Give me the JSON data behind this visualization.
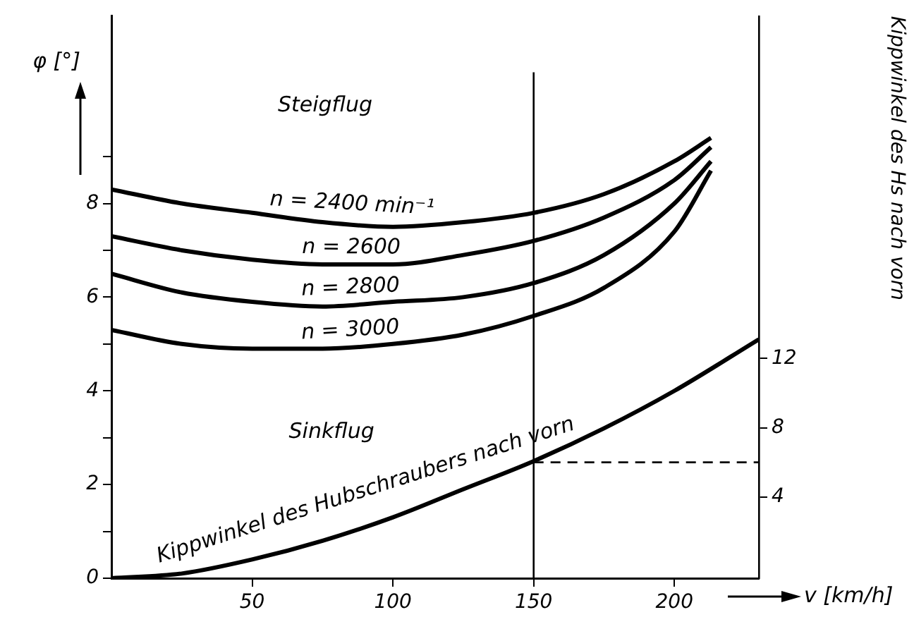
{
  "chart_data": {
    "type": "line",
    "xlabel": "v [km/h]",
    "ylabel": "φ [°]",
    "y2label": "Kippwinkel des Hs nach vorn",
    "xlim": [
      0,
      230
    ],
    "xticks": [
      50,
      100,
      150,
      200
    ],
    "ylim": [
      0,
      12
    ],
    "yticks": [
      0,
      {
        "value": 1,
        "label": null
      },
      2,
      {
        "value": 3,
        "label": null
      },
      4,
      {
        "value": 5,
        "label": null
      },
      6,
      {
        "value": 7,
        "label": null
      },
      8,
      {
        "value": 9,
        "label": null
      }
    ],
    "y2lim": [
      -0.7,
      31.8
    ],
    "y2ticks": [
      4,
      8,
      12
    ],
    "grid": false,
    "legend": false,
    "marker": "none",
    "line_style": "solid",
    "series": [
      {
        "name": "n = 2400 min⁻¹",
        "color": "#000000",
        "x": [
          0,
          25,
          50,
          75,
          100,
          125,
          150,
          175,
          200,
          213
        ],
        "values": [
          8.3,
          8.0,
          7.8,
          7.6,
          7.5,
          7.6,
          7.8,
          8.2,
          8.9,
          9.4
        ]
      },
      {
        "name": "n = 2600",
        "color": "#000000",
        "x": [
          0,
          25,
          50,
          75,
          100,
          125,
          150,
          175,
          200,
          213
        ],
        "values": [
          7.3,
          7.0,
          6.8,
          6.7,
          6.7,
          6.9,
          7.2,
          7.7,
          8.5,
          9.2
        ]
      },
      {
        "name": "n = 2800",
        "color": "#000000",
        "x": [
          0,
          25,
          50,
          75,
          100,
          125,
          150,
          175,
          200,
          213
        ],
        "values": [
          6.5,
          6.1,
          5.9,
          5.8,
          5.9,
          6.0,
          6.3,
          6.9,
          8.0,
          8.9
        ]
      },
      {
        "name": "n = 3000",
        "color": "#000000",
        "x": [
          0,
          25,
          50,
          75,
          100,
          125,
          150,
          175,
          200,
          213
        ],
        "values": [
          5.3,
          5.0,
          4.9,
          4.9,
          5.0,
          5.2,
          5.6,
          6.2,
          7.4,
          8.7
        ]
      },
      {
        "name": "Kippwinkel des Hubschraubers nach vorn",
        "color": "#000000",
        "x": [
          0,
          25,
          50,
          75,
          100,
          125,
          150,
          175,
          200,
          230
        ],
        "values": [
          0,
          0.1,
          0.4,
          0.8,
          1.3,
          1.9,
          2.5,
          3.2,
          4.0,
          5.1
        ]
      }
    ],
    "ref_lines": [
      {
        "axis": "x",
        "value": 150,
        "line_style": "solid"
      },
      {
        "axis": "y2",
        "value": 6,
        "line_style": "dashed"
      }
    ],
    "annotations": [
      "Steigflug",
      "Sinkflug"
    ]
  }
}
